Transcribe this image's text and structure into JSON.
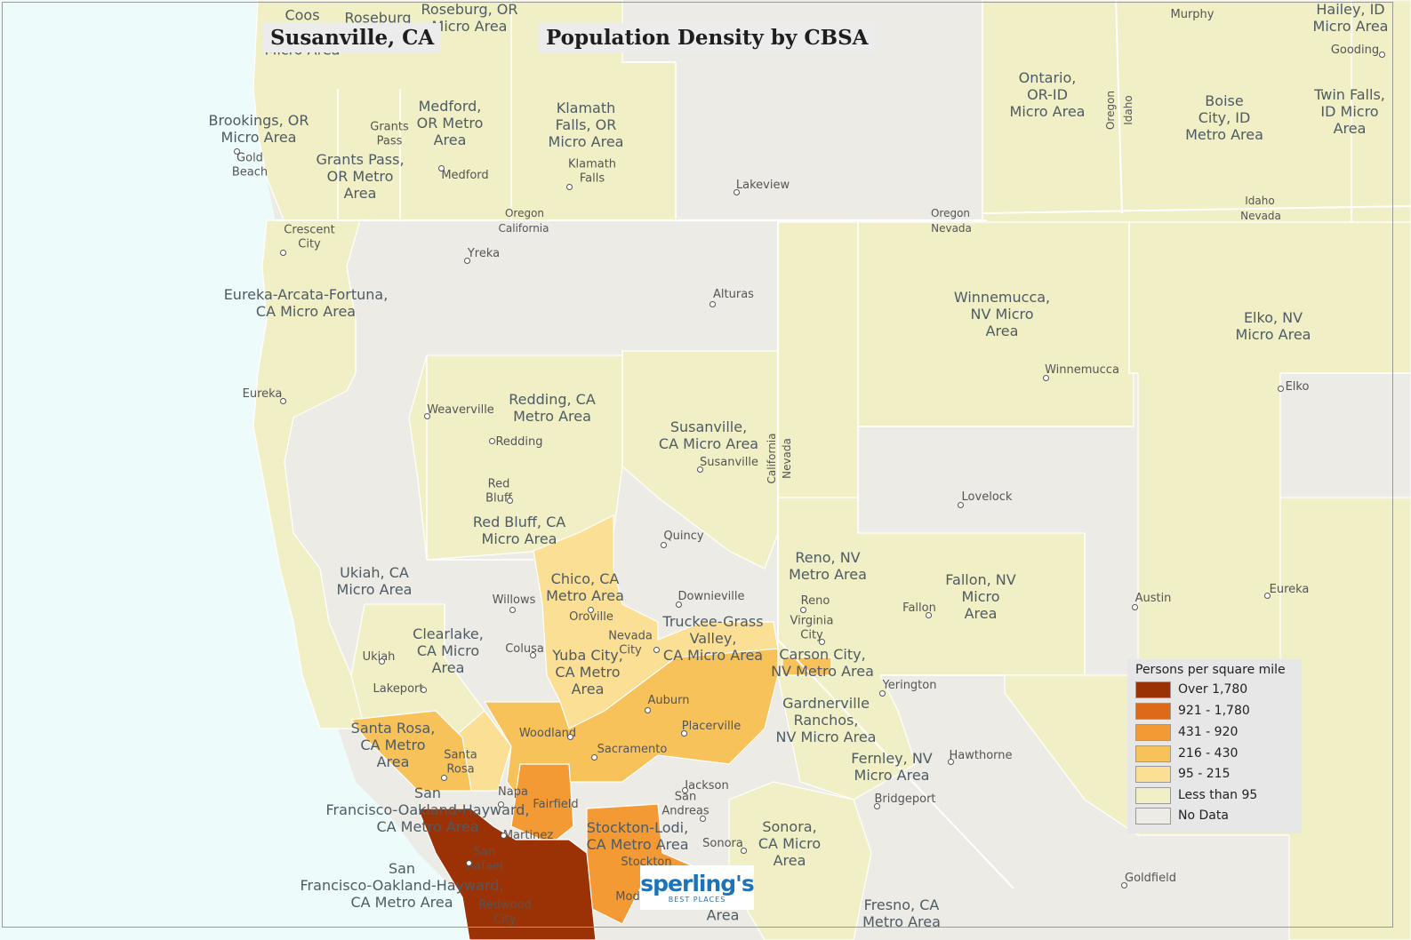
{
  "title": {
    "place": "Susanville, CA",
    "map_title": "Population Density by CBSA"
  },
  "colors": {
    "ocean": "#eefbfb",
    "no_data": "#ecebe6",
    "lt95": "#f1efc6",
    "c95": "#fbdf94",
    "c216": "#f8c25a",
    "c431": "#f49a34",
    "c921": "#dd6a18",
    "over": "#9a3206"
  },
  "legend": {
    "title": "Persons per square mile",
    "items": [
      {
        "label": "Over 1,780",
        "color": "#9a3206"
      },
      {
        "label": "921 - 1,780",
        "color": "#dd6a18"
      },
      {
        "label": "431 - 920",
        "color": "#f49a34"
      },
      {
        "label": "216 - 430",
        "color": "#f8c25a"
      },
      {
        "label": "95 - 215",
        "color": "#fbdf94"
      },
      {
        "label": "Less than 95",
        "color": "#f1efc6"
      },
      {
        "label": "No Data",
        "color": "#ecebe6"
      }
    ]
  },
  "logo": {
    "name": "sperling's",
    "tagline": "BEST PLACES"
  },
  "areas": {
    "coos": "Coos",
    "roseburg_partial": "Roseburg",
    "roseburg": "Roseburg, OR\nMicro Area",
    "brookings_partial": "Micro Area",
    "murphy": "Murphy",
    "hailey": "Hailey, ID\nMicro Area",
    "gooding": "Gooding",
    "ontario": "Ontario,\nOR-ID\nMicro Area",
    "boise": "Boise\nCity, ID\nMetro Area",
    "twin_falls": "Twin Falls,\nID Micro\nArea",
    "brookings": "Brookings, OR\nMicro Area",
    "medford_area": "Medford,\nOR Metro\nArea",
    "klamath": "Klamath\nFalls, OR\nMicro Area",
    "grants_pass": "Grants Pass,\nOR Metro\nArea",
    "eureka_area": "Eureka-Arcata-Fortuna,\nCA Micro Area",
    "winnemucca_area": "Winnemucca,\nNV Micro\nArea",
    "elko_area": "Elko, NV\nMicro Area",
    "redding_area": "Redding, CA\nMetro Area",
    "susanville_area": "Susanville,\nCA Micro Area",
    "red_bluff_area": "Red Bluff, CA\nMicro Area",
    "ukiah_area": "Ukiah, CA\nMicro Area",
    "chico": "Chico, CA\nMetro Area",
    "reno_area": "Reno, NV\nMetro Area",
    "fallon_area": "Fallon, NV\nMicro\nArea",
    "truckee": "Truckee-Grass\nValley,\nCA Micro Area",
    "clearlake": "Clearlake,\nCA Micro\nArea",
    "yuba": "Yuba City,\nCA Metro\nArea",
    "carson": "Carson City,\nNV Metro Area",
    "gardnerville": "Gardnerville\nRanchos,\nNV Micro Area",
    "santa_rosa_area": "Santa Rosa,\nCA Metro\nArea",
    "fernley": "Fernley, NV\nMicro Area",
    "sf1": "San\nFrancisco-Oakland-Hayward,\nCA Metro Area",
    "stockton_area": "Stockton-Lodi,\nCA Metro Area",
    "sonora_area": "Sonora,\nCA Micro\nArea",
    "sf2": "San\nFrancisco-Oakland-Hayward,\nCA Metro Area",
    "modesto_partial": "Area",
    "fresno": "Fresno, CA\nMetro Area"
  },
  "cities": {
    "grants_pass": "Grants\nPass",
    "medford": "Medford",
    "klamath_falls": "Klamath\nFalls",
    "gold_beach": "Gold\nBeach",
    "lakeview": "Lakeview",
    "crescent_city": "Crescent\nCity",
    "yreka": "Yreka",
    "alturas": "Alturas",
    "winnemucca": "Winnemucca",
    "eureka_ca": "Eureka",
    "elko": "Elko",
    "weaverville": "Weaverville",
    "redding": "Redding",
    "susanville": "Susanville",
    "red_bluff": "Red\nBluff",
    "lovelock": "Lovelock",
    "quincy": "Quincy",
    "willows": "Willows",
    "downieville": "Downieville",
    "reno": "Reno",
    "fallon": "Fallon",
    "austin": "Austin",
    "eureka_nv": "Eureka",
    "oroville": "Oroville",
    "nevada_city": "Nevada\nCity",
    "virginia_city": "Virginia\nCity",
    "ukiah": "Ukiah",
    "colusa": "Colusa",
    "yerington": "Yerington",
    "lakeport": "Lakeport",
    "auburn": "Auburn",
    "woodland": "Woodland",
    "placerville": "Placerville",
    "sacramento": "Sacramento",
    "hawthorne": "Hawthorne",
    "santa_rosa": "Santa\nRosa",
    "jackson": "Jackson",
    "napa": "Napa",
    "san_andreas": "San\nAndreas",
    "bridgeport": "Bridgeport",
    "fairfield": "Fairfield",
    "martinez": "Martinez",
    "sonora": "Sonora",
    "san_rafael": "San\nRafael",
    "stockton": "Stockton",
    "goldfield": "Goldfield",
    "redwood_city": "Redwood\nCity",
    "modesto": "Mod"
  },
  "states": {
    "oregon_n": "Oregon",
    "california_s": "California",
    "oregon_n2": "Oregon",
    "nevada_s": "Nevada",
    "idaho_n": "Idaho",
    "nevada_s2": "Nevada",
    "oregon_v": "Oregon",
    "idaho_v": "Idaho",
    "california_v": "California",
    "nevada_v": "Nevada"
  }
}
